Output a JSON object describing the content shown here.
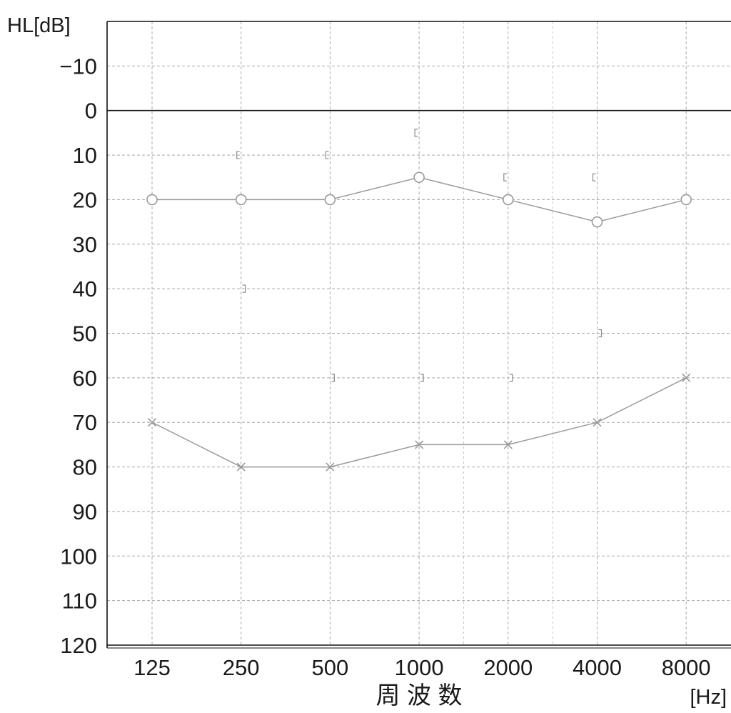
{
  "chart_data": {
    "type": "line",
    "ylabel": "HL[dB]",
    "xlabel": "周 波 数",
    "xunit": "[Hz]",
    "categories": [
      "125",
      "250",
      "500",
      "1000",
      "2000",
      "4000",
      "8000"
    ],
    "y_ticks": [
      -10,
      0,
      10,
      20,
      30,
      40,
      50,
      60,
      70,
      80,
      90,
      100,
      110,
      120
    ],
    "y_tick_labels": [
      "−10",
      "0",
      "10",
      "20",
      "30",
      "40",
      "50",
      "60",
      "70",
      "80",
      "90",
      "100",
      "110",
      "120"
    ],
    "ylim": [
      -20,
      120
    ],
    "y_inverted": true,
    "grid": true,
    "series": [
      {
        "marker": "circle",
        "values": [
          20,
          20,
          20,
          15,
          20,
          25,
          20
        ]
      },
      {
        "marker": "cross",
        "values": [
          70,
          80,
          80,
          75,
          75,
          70,
          60
        ]
      }
    ],
    "bone_conduction_left_bracket": [
      null,
      10,
      10,
      5,
      15,
      15,
      null
    ],
    "bone_conduction_right_bracket": [
      null,
      40,
      60,
      60,
      60,
      50,
      null
    ],
    "colors": {
      "axis": "#111111",
      "grid": "#a8a8a8",
      "series": "#9a9a9a",
      "text": "#1a1a1a"
    }
  }
}
